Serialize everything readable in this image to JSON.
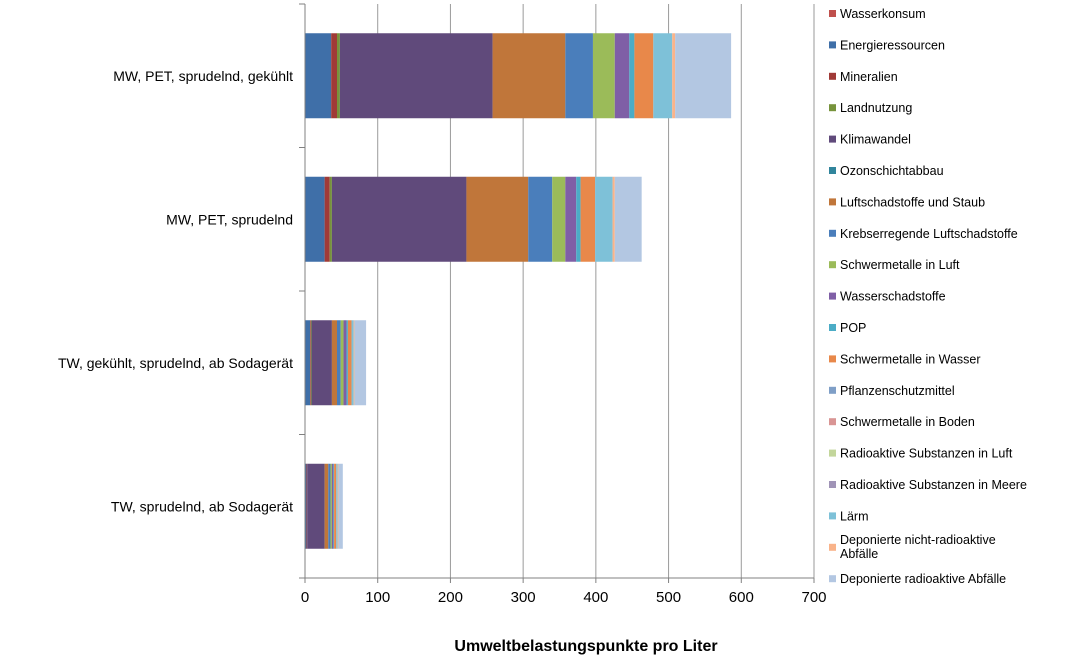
{
  "chart_data": {
    "type": "bar",
    "orientation": "horizontal",
    "stacked": true,
    "title": "",
    "xlabel": "Umweltbelastungspunkte pro Liter",
    "ylabel": "",
    "xlim": [
      0,
      700
    ],
    "xticks": [
      0,
      100,
      200,
      300,
      400,
      500,
      600,
      700
    ],
    "grid": "vertical",
    "legend_position": "right",
    "categories": [
      "MW, PET, sprudelnd, gekühlt",
      "MW, PET, sprudelnd",
      "TW, gekühlt, sprudelnd, ab Sodagerät",
      "TW, sprudelnd, ab Sodagerät"
    ],
    "series": [
      {
        "name": "Wasserkonsum",
        "color": "#C0504D",
        "values": [
          0,
          0,
          0,
          0
        ]
      },
      {
        "name": "Energieressourcen",
        "color": "#3F6FA8",
        "values": [
          36,
          27,
          7,
          2
        ]
      },
      {
        "name": "Mineralien",
        "color": "#A03A37",
        "values": [
          8,
          7,
          1,
          1
        ]
      },
      {
        "name": "Landnutzung",
        "color": "#77933C",
        "values": [
          4,
          3,
          1,
          0
        ]
      },
      {
        "name": "Klimawandel",
        "color": "#604A7B",
        "values": [
          210,
          185,
          28,
          24
        ]
      },
      {
        "name": "Ozonschichtabbau",
        "color": "#31859C",
        "values": [
          0,
          0,
          0,
          0
        ]
      },
      {
        "name": "Luftschadstoffe und Staub",
        "color": "#C0763A",
        "values": [
          100,
          85,
          7,
          5
        ]
      },
      {
        "name": "Krebserregende Luftschadstoffe",
        "color": "#4A7EBB",
        "values": [
          38,
          33,
          5,
          3
        ]
      },
      {
        "name": "Schwermetalle in Luft",
        "color": "#9BBB59",
        "values": [
          30,
          18,
          4,
          2
        ]
      },
      {
        "name": "Wasserschadstoffe",
        "color": "#7F5FA6",
        "values": [
          20,
          15,
          4,
          2
        ]
      },
      {
        "name": "POP",
        "color": "#4BACC6",
        "values": [
          7,
          6,
          2,
          1
        ]
      },
      {
        "name": "Schwermetalle in Wasser",
        "color": "#E8884A",
        "values": [
          26,
          20,
          5,
          3
        ]
      },
      {
        "name": "Pflanzenschutzmittel",
        "color": "#7F9FC7",
        "values": [
          0,
          0,
          0,
          0
        ]
      },
      {
        "name": "Schwermetalle in Boden",
        "color": "#D99594",
        "values": [
          0,
          0,
          0,
          0
        ]
      },
      {
        "name": "Radioaktive Substanzen in Luft",
        "color": "#C3D69B",
        "values": [
          0,
          0,
          0,
          0
        ]
      },
      {
        "name": "Radioaktive Substanzen in Meere",
        "color": "#A094B7",
        "values": [
          0,
          0,
          0,
          0
        ]
      },
      {
        "name": "Lärm",
        "color": "#7EC1D8",
        "values": [
          26,
          24,
          3,
          2
        ]
      },
      {
        "name": "Deponierte nicht-radioaktive Abfälle",
        "color": "#F9B38A",
        "values": [
          4,
          3,
          1,
          1
        ]
      },
      {
        "name": "Deponierte radioaktive Abfälle",
        "color": "#B3C7E2",
        "values": [
          77,
          37,
          16,
          6
        ]
      }
    ]
  }
}
